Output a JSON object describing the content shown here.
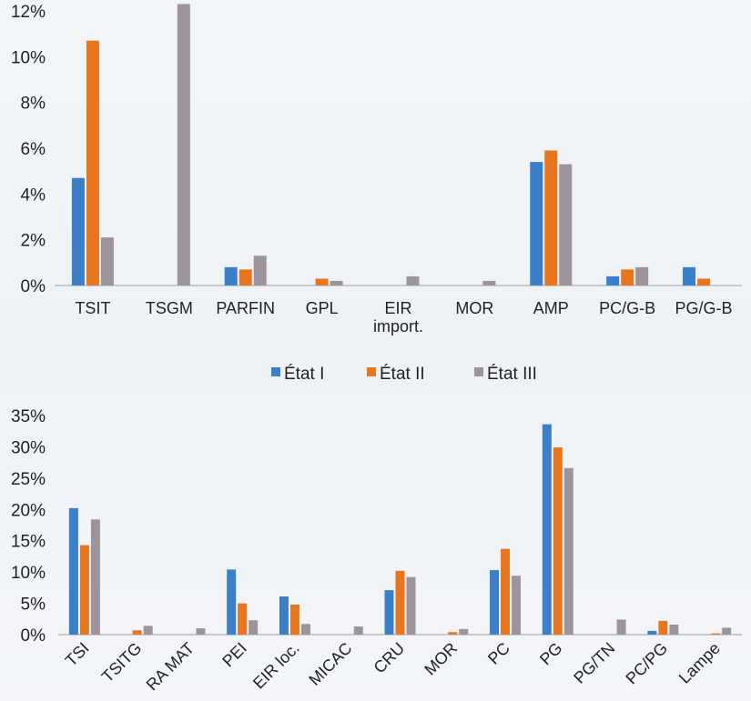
{
  "chart_data": [
    {
      "type": "bar",
      "categories": [
        "TSIT",
        "TSGM",
        "PARFIN",
        "GPL",
        "EIR import.",
        "MOR",
        "AMP",
        "PC/G-B",
        "PG/G-B"
      ],
      "category_lines": [
        [
          "TSIT"
        ],
        [
          "TSGM"
        ],
        [
          "PARFIN"
        ],
        [
          "GPL"
        ],
        [
          "EIR",
          "import."
        ],
        [
          "MOR"
        ],
        [
          "AMP"
        ],
        [
          "PC/G-B"
        ],
        [
          "PG/G-B"
        ]
      ],
      "series": [
        {
          "name": "État I",
          "values": [
            4.7,
            0,
            0.8,
            0,
            0,
            0,
            5.4,
            0.4,
            0.8
          ]
        },
        {
          "name": "État II",
          "values": [
            10.7,
            0,
            0.7,
            0.3,
            0,
            0,
            5.9,
            0.7,
            0.3
          ]
        },
        {
          "name": "État III",
          "values": [
            2.1,
            12.3,
            1.3,
            0.2,
            0.4,
            0.2,
            5.3,
            0.8,
            0
          ]
        }
      ],
      "yticks": [
        "0%",
        "2%",
        "4%",
        "6%",
        "8%",
        "10%",
        "12%"
      ],
      "ylim": [
        0,
        12
      ],
      "grid": false,
      "legend": "bottom"
    },
    {
      "type": "bar",
      "categories": [
        "TSI",
        "TSITG",
        "RA MAT",
        "PEI",
        "EIR loc.",
        "MICAC",
        "CRU",
        "MOR",
        "PC",
        "PG",
        "PG/TN",
        "PC/PG",
        "Lampe"
      ],
      "series": [
        {
          "name": "État I",
          "values": [
            20.2,
            0,
            0,
            10.4,
            6.1,
            0,
            7.1,
            0,
            10.3,
            33.6,
            0,
            0.6,
            0
          ]
        },
        {
          "name": "État II",
          "values": [
            14.3,
            0.7,
            0,
            5.0,
            4.8,
            0,
            10.2,
            0.4,
            13.7,
            29.9,
            0,
            2.2,
            0.2
          ]
        },
        {
          "name": "État III",
          "values": [
            18.4,
            1.4,
            1.0,
            2.3,
            1.7,
            1.3,
            9.2,
            0.9,
            9.4,
            26.6,
            2.4,
            1.6,
            1.1
          ]
        }
      ],
      "yticks": [
        "0%",
        "5%",
        "10%",
        "15%",
        "20%",
        "25%",
        "30%",
        "35%"
      ],
      "ylim": [
        0,
        35
      ],
      "grid": false,
      "legend": "none"
    }
  ],
  "legend": {
    "items": [
      {
        "label": "État I",
        "color": "#3a7fc8"
      },
      {
        "label": "État II",
        "color": "#e8761e"
      },
      {
        "label": "État III",
        "color": "#9c949a"
      }
    ]
  },
  "colors": {
    "series": [
      "#3a7fc8",
      "#e8761e",
      "#9c949a"
    ],
    "axis": "#b8bcc2"
  }
}
